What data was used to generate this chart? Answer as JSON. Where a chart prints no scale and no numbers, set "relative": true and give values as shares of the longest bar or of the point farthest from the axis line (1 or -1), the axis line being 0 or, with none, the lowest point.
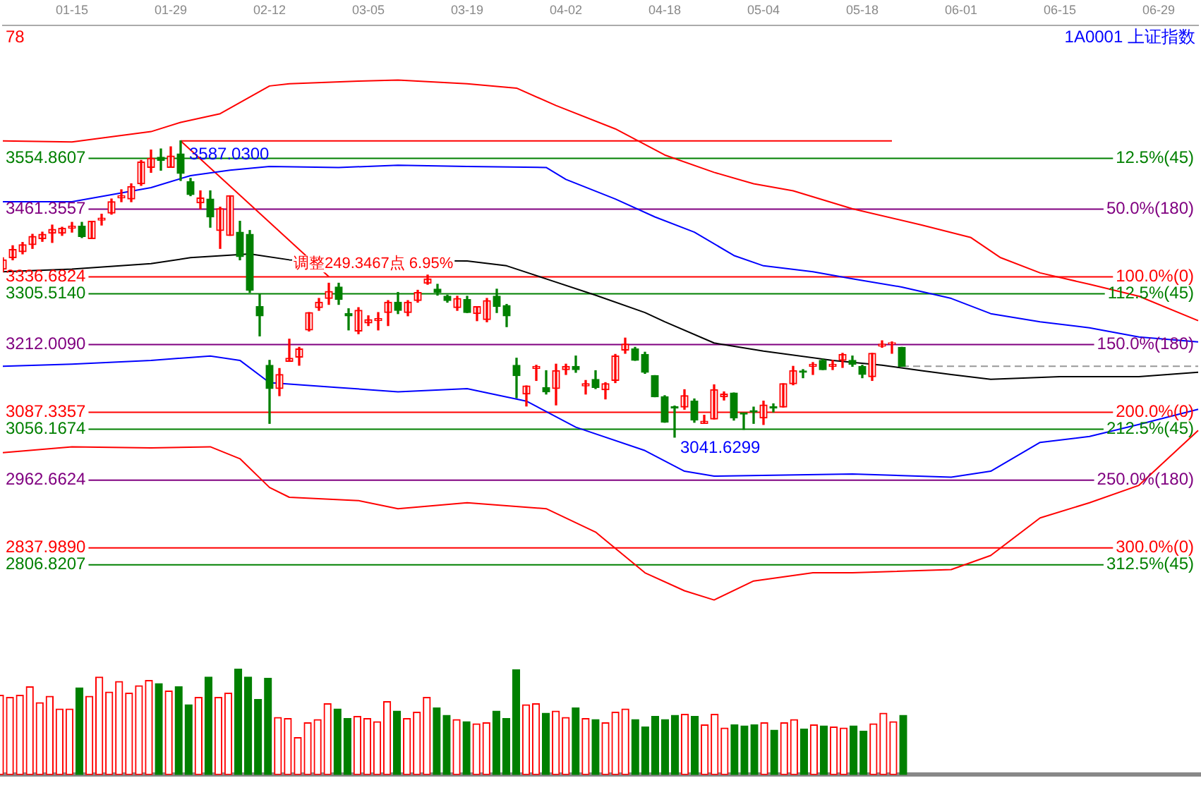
{
  "chart_data": [
    {
      "type": "candlestick",
      "title": "1A0001 上证指数",
      "tick_labels": "x",
      "categories": [
        null,
        null,
        null,
        null,
        null,
        null,
        null,
        "01-15",
        null,
        null,
        null,
        null,
        null,
        null,
        null,
        null,
        null,
        "01-29",
        null,
        null,
        null,
        null,
        null,
        null,
        null,
        null,
        null,
        "02-12",
        null,
        null,
        null,
        null,
        null,
        null,
        null,
        null,
        null,
        "03-05",
        null,
        null,
        null,
        null,
        null,
        null,
        null,
        null,
        null,
        "03-19",
        null,
        null,
        null,
        null,
        null,
        null,
        null,
        null,
        null,
        "04-02",
        null,
        null,
        null,
        null,
        null,
        null,
        null,
        null,
        null,
        "04-18",
        null,
        null,
        null,
        null,
        null,
        null,
        null,
        null,
        null,
        "05-04",
        null,
        null,
        null,
        null,
        null,
        null,
        null,
        null,
        null,
        "05-18",
        null,
        null,
        null,
        null,
        null,
        null,
        null,
        null,
        null,
        "06-01",
        null,
        null,
        null,
        null,
        null,
        null,
        null,
        null,
        null,
        "06-15",
        null,
        null,
        null,
        null,
        null,
        null,
        null,
        null,
        null,
        "06-29",
        null,
        null,
        null,
        null
      ],
      "series": [
        {
          "type": "candlestick",
          "ohlc": [
            [
              3351,
              3372,
              3346,
              3368
            ],
            [
              3372,
              3394,
              3368,
              3387
            ],
            [
              3383,
              3400,
              3379,
              3396
            ],
            [
              3396,
              3415,
              3389,
              3411
            ],
            [
              3407,
              3419,
              3402,
              3415
            ],
            [
              3417,
              3432,
              3400,
              3424
            ],
            [
              3417,
              3428,
              3413,
              3426
            ],
            [
              3426,
              3437,
              3419,
              3430
            ],
            [
              3430,
              3437,
              3409,
              3411
            ],
            [
              3407,
              3439,
              3407,
              3439
            ],
            [
              3441,
              3452,
              3432,
              3445
            ],
            [
              3454,
              3480,
              3452,
              3475
            ],
            [
              3482,
              3497,
              3475,
              3486
            ],
            [
              3480,
              3508,
              3475,
              3503
            ],
            [
              3508,
              3551,
              3505,
              3548
            ],
            [
              3538,
              3570,
              3529,
              3555
            ],
            [
              3557,
              3572,
              3533,
              3551
            ],
            [
              3538,
              3576,
              3538,
              3559
            ],
            [
              3563,
              3587.03,
              3514,
              3527
            ],
            [
              3512,
              3518,
              3486,
              3488
            ],
            [
              3473,
              3495,
              3462,
              3482
            ],
            [
              3480,
              3495,
              3428,
              3447
            ],
            [
              3422,
              3465,
              3389,
              3462
            ],
            [
              3413,
              3486,
              3413,
              3486
            ],
            [
              3419,
              3439,
              3368,
              3374
            ],
            [
              3415,
              3422,
              3308,
              3312
            ],
            [
              3282,
              3305,
              3228,
              3265
            ],
            [
              3174,
              3183,
              3067,
              3131
            ],
            [
              3131,
              3168,
              3118,
              3157
            ],
            [
              3181,
              3222,
              3181,
              3187
            ],
            [
              3189,
              3207,
              3174,
              3204
            ],
            [
              3239,
              3271,
              3237,
              3271
            ],
            [
              3280,
              3297,
              3275,
              3290
            ],
            [
              3297,
              3325,
              3286,
              3310
            ],
            [
              3318,
              3325,
              3286,
              3295
            ],
            [
              3269,
              3278,
              3239,
              3265
            ],
            [
              3237,
              3280,
              3232,
              3275
            ],
            [
              3252,
              3265,
              3247,
              3258
            ],
            [
              3256,
              3271,
              3239,
              3260
            ],
            [
              3271,
              3293,
              3247,
              3290
            ],
            [
              3290,
              3308,
              3269,
              3275
            ],
            [
              3271,
              3293,
              3265,
              3290
            ],
            [
              3293,
              3312,
              3290,
              3308
            ],
            [
              3325,
              3340,
              3323,
              3333
            ],
            [
              3314,
              3323,
              3303,
              3308
            ],
            [
              3301,
              3303,
              3290,
              3293
            ],
            [
              3280,
              3301,
              3275,
              3297
            ],
            [
              3295,
              3301,
              3271,
              3271
            ],
            [
              3269,
              3282,
              3256,
              3282
            ],
            [
              3258,
              3297,
              3254,
              3293
            ],
            [
              3301,
              3314,
              3271,
              3282
            ],
            [
              3284,
              3286,
              3245,
              3265
            ],
            [
              3174,
              3187,
              3114,
              3155
            ],
            [
              3121,
              3136,
              3099,
              3136
            ],
            [
              3168,
              3174,
              3146,
              3172
            ],
            [
              3133,
              3164,
              3121,
              3125
            ],
            [
              3131,
              3176,
              3101,
              3164
            ],
            [
              3166,
              3176,
              3157,
              3172
            ],
            [
              3172,
              3191,
              3161,
              3166
            ],
            [
              3136,
              3146,
              3121,
              3140
            ],
            [
              3148,
              3164,
              3131,
              3133
            ],
            [
              3129,
              3142,
              3112,
              3140
            ],
            [
              3146,
              3194,
              3142,
              3191
            ],
            [
              3202,
              3224,
              3196,
              3213
            ],
            [
              3204,
              3207,
              3183,
              3183
            ],
            [
              3194,
              3198,
              3159,
              3161
            ],
            [
              3155,
              3155,
              3116,
              3116
            ],
            [
              3116,
              3118,
              3069,
              3069
            ],
            [
              3097,
              3099,
              3041.6299,
              3095
            ],
            [
              3097,
              3129,
              3093,
              3118
            ],
            [
              3108,
              3112,
              3069,
              3073
            ],
            [
              3067,
              3082,
              3067,
              3071
            ],
            [
              3075,
              3138,
              3075,
              3129
            ],
            [
              3116,
              3125,
              3110,
              3121
            ],
            [
              3123,
              3123,
              3073,
              3077
            ],
            [
              3086,
              3086,
              3056,
              3084
            ],
            [
              3090,
              3097,
              3067,
              3088
            ],
            [
              3077,
              3108,
              3065,
              3101
            ],
            [
              3097,
              3103,
              3088,
              3095
            ],
            [
              3097,
              3140,
              3097,
              3140
            ],
            [
              3140,
              3172,
              3138,
              3164
            ],
            [
              3163,
              3166,
              3151,
              3161
            ],
            [
              3172,
              3179,
              3157,
              3176
            ],
            [
              3183,
              3185,
              3166,
              3166
            ],
            [
              3172,
              3183,
              3166,
              3176
            ],
            [
              3183,
              3196,
              3170,
              3194
            ],
            [
              3183,
              3191,
              3172,
              3176
            ],
            [
              3172,
              3174,
              3151,
              3157
            ],
            [
              3153,
              3196,
              3146,
              3196
            ],
            [
              3209,
              3219,
              3207,
              3213
            ],
            [
              3213,
              3217,
              3196,
              3215
            ],
            [
              3207,
              3207,
              3172,
              3172
            ],
            null,
            null,
            null,
            null,
            null,
            null,
            null,
            null,
            null,
            null,
            null,
            null,
            null,
            null,
            null,
            null,
            null,
            null,
            null,
            null,
            null,
            null,
            null,
            null,
            null,
            null,
            null,
            null,
            null,
            null
          ],
          "colors": [
            "#ff0000",
            "#ff0000",
            "#ff0000",
            "#ff0000",
            "#ff0000",
            "#ff0000",
            "#ff0000",
            "#ff0000",
            "#008000",
            "#ff0000",
            "#ff0000",
            "#ff0000",
            "#ff0000",
            "#ff0000",
            "#ff0000",
            "#ff0000",
            "#008000",
            "#ff0000",
            "#008000",
            "#008000",
            "#ff0000",
            "#008000",
            "#ff0000",
            "#ff0000",
            "#008000",
            "#008000",
            "#008000",
            "#008000",
            "#ff0000",
            "#ff0000",
            "#ff0000",
            "#ff0000",
            "#ff0000",
            "#ff0000",
            "#008000",
            "#008000",
            "#ff0000",
            "#ff0000",
            "#ff0000",
            "#ff0000",
            "#008000",
            "#ff0000",
            "#ff0000",
            "#ff0000",
            "#008000",
            "#008000",
            "#ff0000",
            "#008000",
            "#ff0000",
            "#ff0000",
            "#008000",
            "#008000",
            "#008000",
            "#ff0000",
            "#ff0000",
            "#008000",
            "#ff0000",
            "#ff0000",
            "#008000",
            "#ff0000",
            "#008000",
            "#ff0000",
            "#ff0000",
            "#ff0000",
            "#008000",
            "#008000",
            "#008000",
            "#008000",
            "#008000",
            "#ff0000",
            "#008000",
            "#ff0000",
            "#ff0000",
            "#ff0000",
            "#008000",
            "#008000",
            "#008000",
            "#ff0000",
            "#008000",
            "#ff0000",
            "#ff0000",
            "#008000",
            "#ff0000",
            "#008000",
            "#ff0000",
            "#ff0000",
            "#008000",
            "#008000",
            "#ff0000",
            "#ff0000",
            "#ff0000",
            "#008000",
            null,
            null,
            null,
            null,
            null,
            null,
            null,
            null,
            null,
            null,
            null,
            null,
            null,
            null,
            null,
            null,
            null,
            null,
            null,
            null,
            null,
            null,
            null,
            null,
            null,
            null,
            null,
            null,
            null,
            null
          ]
        },
        {
          "type": "line",
          "color": "#ff0000",
          "values": [
            3587,
            null,
            null,
            null,
            null,
            null,
            null,
            3585,
            null,
            null,
            null,
            null,
            null,
            null,
            null,
            3604,
            null,
            null,
            3621,
            null,
            null,
            null,
            3637,
            null,
            null,
            null,
            null,
            3688,
            null,
            3692,
            null,
            null,
            null,
            null,
            null,
            null,
            3697,
            null,
            null,
            null,
            3699,
            null,
            null,
            null,
            null,
            null,
            null,
            3692,
            null,
            null,
            null,
            null,
            3684,
            null,
            null,
            null,
            3652,
            null,
            null,
            null,
            null,
            null,
            3609,
            null,
            null,
            null,
            null,
            3561,
            null,
            null,
            null,
            null,
            3529,
            null,
            null,
            null,
            3508,
            null,
            null,
            null,
            3495,
            null,
            null,
            null,
            null,
            null,
            3462,
            null,
            null,
            null,
            null,
            null,
            null,
            3432,
            null,
            null,
            null,
            null,
            3409,
            null,
            null,
            3372,
            null,
            null,
            null,
            3344,
            null,
            null,
            null,
            null,
            3323,
            null,
            null,
            null,
            null,
            3301,
            null,
            null,
            null,
            null,
            null,
            3256
          ]
        },
        {
          "type": "line",
          "color": "#0000ff",
          "values": [
            3475,
            null,
            null,
            null,
            null,
            null,
            null,
            3475,
            null,
            null,
            null,
            null,
            null,
            null,
            null,
            3501,
            null,
            null,
            null,
            3523,
            null,
            null,
            null,
            3533,
            null,
            null,
            null,
            3540,
            null,
            null,
            null,
            null,
            null,
            null,
            3538,
            null,
            null,
            null,
            null,
            null,
            3542,
            null,
            null,
            null,
            null,
            null,
            null,
            3540,
            null,
            null,
            null,
            null,
            null,
            null,
            null,
            3538,
            null,
            3516,
            null,
            null,
            null,
            null,
            3480,
            null,
            null,
            null,
            3447,
            null,
            null,
            null,
            3419,
            null,
            null,
            null,
            3376,
            null,
            null,
            3357,
            null,
            null,
            null,
            null,
            3346,
            null,
            null,
            null,
            3333,
            null,
            null,
            null,
            null,
            3318,
            null,
            null,
            null,
            null,
            3297,
            null,
            null,
            null,
            3269,
            null,
            null,
            null,
            null,
            3254,
            null,
            null,
            null,
            null,
            3243,
            null,
            null,
            null,
            null,
            3226,
            null,
            null,
            null,
            null,
            null,
            3217
          ]
        },
        {
          "type": "line",
          "color": "#000000",
          "values": [
            3346,
            null,
            null,
            null,
            null,
            null,
            null,
            3351,
            null,
            null,
            null,
            null,
            null,
            null,
            null,
            3361,
            null,
            null,
            null,
            3372,
            null,
            null,
            null,
            null,
            null,
            3379,
            null,
            null,
            null,
            3368,
            null,
            null,
            null,
            null,
            null,
            null,
            null,
            null,
            null,
            null,
            null,
            null,
            null,
            null,
            null,
            null,
            null,
            3366,
            null,
            null,
            null,
            3357,
            null,
            null,
            null,
            3333,
            null,
            null,
            null,
            null,
            3303,
            null,
            null,
            null,
            null,
            3271,
            null,
            3254,
            null,
            null,
            null,
            null,
            3215,
            null,
            null,
            null,
            null,
            3200,
            null,
            null,
            null,
            null,
            null,
            null,
            3183,
            null,
            null,
            null,
            null,
            3174,
            null,
            null,
            null,
            3164,
            null,
            null,
            3157,
            null,
            null,
            null,
            3148,
            null,
            null,
            null,
            null,
            null,
            null,
            3153,
            null,
            null,
            null,
            null,
            null,
            null,
            null,
            3153,
            null,
            null,
            null,
            null,
            null,
            3161
          ]
        },
        {
          "type": "line",
          "color": "#0000ff",
          "values": [
            3172,
            null,
            null,
            null,
            null,
            null,
            null,
            3176,
            null,
            null,
            null,
            null,
            null,
            null,
            null,
            3183,
            null,
            null,
            null,
            null,
            null,
            3191,
            null,
            null,
            3183,
            null,
            null,
            3142,
            null,
            null,
            null,
            null,
            null,
            null,
            3133,
            null,
            null,
            null,
            null,
            null,
            3125,
            null,
            null,
            null,
            null,
            null,
            null,
            3131,
            null,
            null,
            null,
            null,
            null,
            3108,
            null,
            null,
            null,
            null,
            3060,
            null,
            null,
            null,
            null,
            null,
            null,
            3017,
            null,
            null,
            null,
            2979,
            null,
            null,
            2970,
            null,
            null,
            null,
            null,
            null,
            null,
            null,
            null,
            null,
            null,
            null,
            null,
            null,
            2974,
            null,
            null,
            null,
            null,
            null,
            null,
            null,
            null,
            null,
            2968,
            null,
            null,
            null,
            2979,
            null,
            null,
            null,
            null,
            3032,
            null,
            null,
            null,
            null,
            3043,
            null,
            null,
            null,
            null,
            3065,
            null,
            null,
            null,
            null,
            null,
            3093
          ]
        },
        {
          "type": "line",
          "color": "#ff0000",
          "values": [
            3013,
            null,
            null,
            null,
            null,
            null,
            null,
            3024,
            null,
            null,
            null,
            null,
            null,
            null,
            null,
            3022,
            null,
            null,
            null,
            null,
            null,
            3024,
            null,
            null,
            3002,
            null,
            null,
            2949,
            null,
            2931,
            null,
            null,
            null,
            null,
            null,
            null,
            2925,
            null,
            null,
            null,
            2910,
            null,
            null,
            null,
            null,
            null,
            null,
            2921,
            null,
            null,
            null,
            null,
            null,
            null,
            null,
            2910,
            null,
            null,
            null,
            null,
            2867,
            null,
            null,
            null,
            null,
            2792,
            null,
            null,
            null,
            2759,
            null,
            null,
            2742,
            null,
            null,
            null,
            2777,
            null,
            null,
            null,
            null,
            null,
            2792,
            null,
            null,
            null,
            2792,
            null,
            null,
            null,
            null,
            null,
            null,
            null,
            null,
            null,
            2798,
            null,
            null,
            null,
            2824,
            null,
            null,
            null,
            null,
            2893,
            null,
            null,
            null,
            null,
            2921,
            null,
            null,
            null,
            null,
            2953,
            null,
            null,
            null,
            null,
            null,
            3054
          ]
        },
        {
          "type": "line",
          "color": "#ff0000",
          "values": [
            null,
            null,
            null,
            null,
            null,
            null,
            null,
            null,
            null,
            null,
            null,
            null,
            null,
            null,
            null,
            null,
            null,
            null,
            3587,
            null,
            null,
            null,
            null,
            null,
            null,
            null,
            null,
            null,
            null,
            null,
            null,
            null,
            null,
            3337,
            null,
            null,
            null,
            null,
            null,
            null,
            null,
            null,
            null,
            null,
            null,
            null,
            null,
            null,
            null,
            null,
            null,
            null,
            null,
            null,
            null,
            null,
            null,
            null,
            null,
            null,
            null,
            null,
            null,
            null,
            null,
            null,
            null,
            null,
            null,
            null,
            null,
            null,
            null,
            null,
            null,
            null,
            null,
            null,
            null,
            null,
            null,
            null,
            null,
            null,
            null,
            null,
            null,
            null,
            null,
            null,
            null,
            null,
            null,
            null,
            null,
            null,
            null,
            null,
            null,
            null,
            null,
            null,
            null,
            null,
            null,
            null,
            null,
            null,
            null,
            null,
            null,
            null,
            null,
            null,
            null,
            null,
            null,
            null,
            null,
            null,
            null,
            null
          ]
        },
        {
          "type": "line",
          "color": "#ff0000",
          "values": [
            null,
            null,
            null,
            null,
            null,
            null,
            null,
            null,
            null,
            null,
            null,
            null,
            null,
            null,
            null,
            null,
            null,
            null,
            3587,
            null,
            null,
            null,
            null,
            null,
            null,
            null,
            null,
            null,
            null,
            null,
            null,
            null,
            null,
            null,
            null,
            null,
            null,
            null,
            null,
            null,
            null,
            null,
            null,
            null,
            null,
            null,
            null,
            null,
            null,
            null,
            null,
            null,
            null,
            null,
            null,
            null,
            null,
            null,
            null,
            null,
            null,
            null,
            null,
            null,
            null,
            null,
            null,
            null,
            null,
            null,
            null,
            null,
            null,
            null,
            null,
            null,
            null,
            null,
            null,
            null,
            null,
            null,
            null,
            null,
            null,
            null,
            null,
            null,
            null,
            null,
            3587,
            null,
            null,
            null,
            null,
            null,
            null,
            null,
            null,
            null,
            null,
            null,
            null,
            null,
            null,
            null,
            null,
            null,
            null,
            null,
            null,
            null,
            null,
            null,
            null,
            null,
            null,
            null,
            null,
            null,
            null,
            null
          ]
        }
      ],
      "ref_lines": [
        {
          "axis": "y",
          "value": 3554.8607,
          "label": "3554.8607",
          "color": "#008000"
        },
        {
          "axis": "y",
          "value": 3461.3557,
          "label": "3461.3557",
          "color": "#800080"
        },
        {
          "axis": "y",
          "value": 3336.6824,
          "label": "3336.6824",
          "color": "#ff0000"
        },
        {
          "axis": "y",
          "value": 3305.514,
          "label": "3305.5140",
          "color": "#008000"
        },
        {
          "axis": "y",
          "value": 3212.009,
          "label": "3212.0090",
          "color": "#800080"
        },
        {
          "axis": "y",
          "value": 3087.3357,
          "label": "3087.3357",
          "color": "#ff0000"
        },
        {
          "axis": "y",
          "value": 3056.1674,
          "label": "3056.1674",
          "color": "#008000"
        },
        {
          "axis": "y",
          "value": 2962.6624,
          "label": "2962.6624",
          "color": "#800080"
        },
        {
          "axis": "y",
          "value": 2837.989,
          "label": "2837.9890",
          "color": "#ff0000"
        },
        {
          "axis": "y",
          "value": 2806.8207,
          "label": "2806.8207",
          "color": "#008000"
        },
        {
          "axis": "y",
          "value": 3172,
          "color": "#999999",
          "line_style": "dashed"
        }
      ],
      "annotations": [
        "78",
        "3587.0300",
        "3041.6299",
        "调整249.3467点 6.95%",
        "12.5%(45)",
        "50.0%(180)",
        "100.0%(0)",
        "112.5%(45)",
        "150.0%(180)",
        "200.0%(0)",
        "212.5%(45)",
        "250.0%(180)",
        "300.0%(0)",
        "312.5%(45)"
      ]
    },
    {
      "type": "bar",
      "relative": true,
      "categories": [
        null,
        null,
        null,
        null,
        null,
        null,
        null,
        null,
        null,
        null,
        null,
        null,
        null,
        null,
        null,
        null,
        null,
        null,
        null,
        null,
        null,
        null,
        null,
        null,
        null,
        null,
        null,
        null,
        null,
        null,
        null,
        null,
        null,
        null,
        null,
        null,
        null,
        null,
        null,
        null,
        null,
        null,
        null,
        null,
        null,
        null,
        null,
        null,
        null,
        null,
        null,
        null,
        null,
        null,
        null,
        null,
        null,
        null,
        null,
        null,
        null,
        null,
        null,
        null,
        null,
        null,
        null,
        null,
        null,
        null,
        null,
        null,
        null,
        null,
        null,
        null,
        null,
        null,
        null,
        null,
        null,
        null,
        null,
        null,
        null,
        null,
        null,
        null,
        null,
        null,
        null,
        null,
        null,
        null,
        null,
        null,
        null,
        null,
        null,
        null,
        null,
        null,
        null,
        null,
        null,
        null,
        null,
        null,
        null,
        null,
        null,
        null,
        null,
        null,
        null,
        null,
        null,
        null,
        null,
        null,
        null,
        null
      ],
      "values": [
        0.75,
        0.73,
        0.75,
        0.83,
        0.68,
        0.74,
        0.62,
        0.62,
        0.82,
        0.74,
        0.92,
        0.78,
        0.88,
        0.77,
        0.84,
        0.89,
        0.86,
        0.79,
        0.83,
        0.66,
        0.73,
        0.92,
        0.73,
        0.77,
        1,
        0.92,
        0.71,
        0.91,
        0.54,
        0.53,
        0.35,
        0.49,
        0.52,
        0.67,
        0.62,
        0.53,
        0.55,
        0.53,
        0.5,
        0.69,
        0.6,
        0.53,
        0.59,
        0.73,
        0.63,
        0.56,
        0.52,
        0.5,
        0.48,
        0.49,
        0.6,
        0.53,
        0.99,
        0.66,
        0.67,
        0.58,
        0.6,
        0.54,
        0.63,
        0.53,
        0.52,
        0.49,
        0.59,
        0.62,
        0.52,
        0.45,
        0.55,
        0.52,
        0.56,
        0.57,
        0.55,
        0.47,
        0.57,
        0.44,
        0.47,
        0.46,
        0.47,
        0.49,
        0.42,
        0.49,
        0.52,
        0.43,
        0.47,
        0.46,
        0.45,
        0.44,
        0.46,
        0.41,
        0.48,
        0.58,
        0.5,
        0.56,
        null,
        null,
        null,
        null,
        null,
        null,
        null,
        null,
        null,
        null,
        null,
        null,
        null,
        null,
        null,
        null,
        null,
        null,
        null,
        null,
        null,
        null,
        null,
        null,
        null,
        null,
        null,
        null,
        null,
        null
      ],
      "colors": [
        "#ff0000",
        "#ff0000",
        "#ff0000",
        "#ff0000",
        "#ff0000",
        "#ff0000",
        "#ff0000",
        "#ff0000",
        "#008000",
        "#ff0000",
        "#ff0000",
        "#ff0000",
        "#ff0000",
        "#ff0000",
        "#ff0000",
        "#ff0000",
        "#008000",
        "#ff0000",
        "#008000",
        "#008000",
        "#ff0000",
        "#008000",
        "#ff0000",
        "#ff0000",
        "#008000",
        "#008000",
        "#008000",
        "#008000",
        "#ff0000",
        "#ff0000",
        "#ff0000",
        "#ff0000",
        "#ff0000",
        "#ff0000",
        "#008000",
        "#008000",
        "#ff0000",
        "#ff0000",
        "#ff0000",
        "#ff0000",
        "#008000",
        "#ff0000",
        "#ff0000",
        "#ff0000",
        "#008000",
        "#008000",
        "#ff0000",
        "#008000",
        "#ff0000",
        "#ff0000",
        "#008000",
        "#008000",
        "#008000",
        "#ff0000",
        "#ff0000",
        "#008000",
        "#ff0000",
        "#ff0000",
        "#008000",
        "#ff0000",
        "#008000",
        "#ff0000",
        "#ff0000",
        "#ff0000",
        "#008000",
        "#008000",
        "#008000",
        "#008000",
        "#008000",
        "#ff0000",
        "#008000",
        "#ff0000",
        "#ff0000",
        "#ff0000",
        "#008000",
        "#008000",
        "#008000",
        "#ff0000",
        "#008000",
        "#ff0000",
        "#ff0000",
        "#008000",
        "#ff0000",
        "#008000",
        "#ff0000",
        "#ff0000",
        "#008000",
        "#008000",
        "#ff0000",
        "#ff0000",
        "#ff0000",
        "#008000",
        null,
        null,
        null,
        null,
        null,
        null,
        null,
        null,
        null,
        null,
        null,
        null,
        null,
        null,
        null,
        null,
        null,
        null,
        null,
        null,
        null,
        null,
        null,
        null,
        null,
        null,
        null,
        null,
        null,
        null
      ]
    }
  ]
}
